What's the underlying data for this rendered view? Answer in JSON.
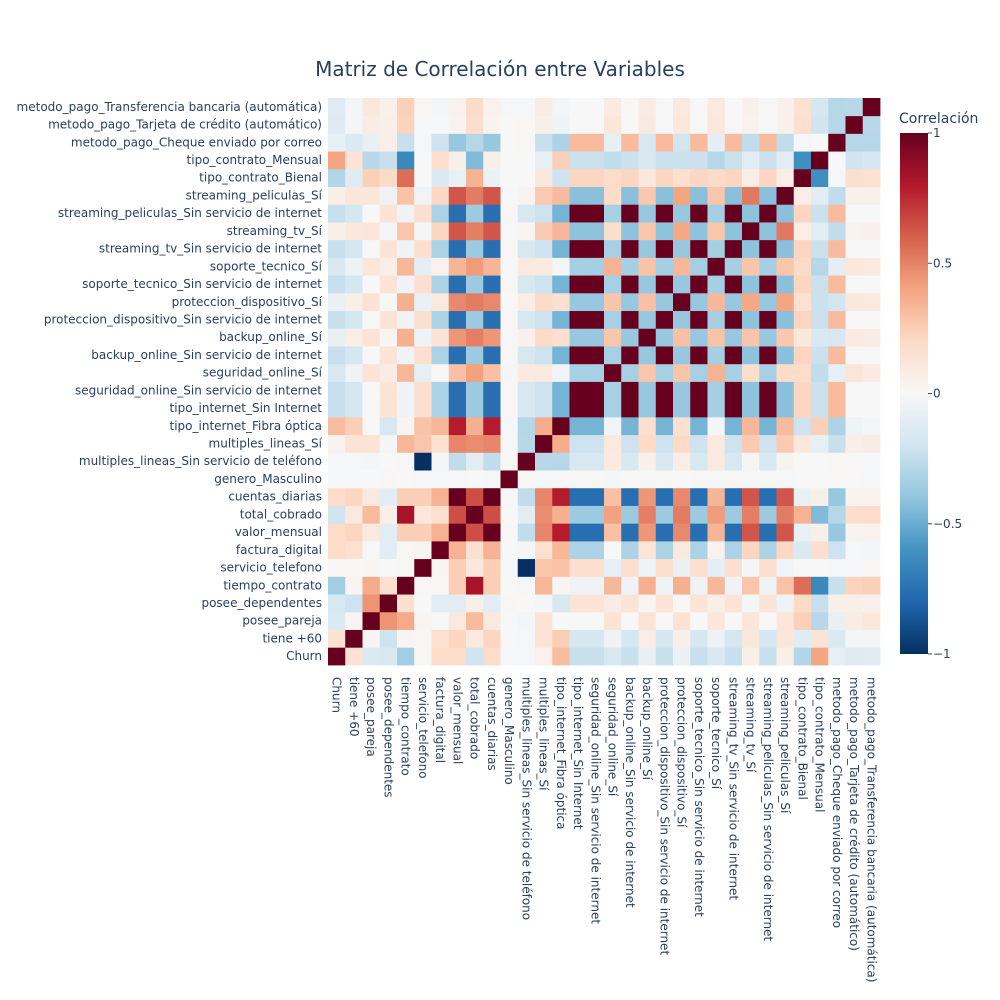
{
  "chart_data": {
    "type": "heatmap",
    "title": "Matriz de Correlación entre Variables",
    "colorbar_title": "Correlación",
    "colorbar_ticks": [
      1,
      0.5,
      0,
      -0.5,
      -1
    ],
    "colorbar_tick_labels": [
      "1",
      "0.5",
      "0",
      "−0.5",
      "−1"
    ],
    "zlim": [
      -1,
      1
    ],
    "colorscale": [
      "#053061",
      "#2166ac",
      "#4393c3",
      "#92c5de",
      "#d1e5f0",
      "#f7f7f7",
      "#fddbc7",
      "#f4a582",
      "#d6604d",
      "#b2182b",
      "#67001f"
    ],
    "variables": [
      "Churn",
      "tiene +60",
      "posee_pareja",
      "posee_dependentes",
      "tiempo_contrato",
      "servicio_telefono",
      "factura_digital",
      "valor_mensual",
      "total_cobrado",
      "cuentas_diarias",
      "genero_Masculino",
      "multiples_lineas_Sin servicio de teléfono",
      "multiples_lineas_Sí",
      "tipo_internet_Fibra óptica",
      "tipo_internet_Sin Internet",
      "seguridad_online_Sin servicio de internet",
      "seguridad_online_Sí",
      "backup_online_Sin servicio de internet",
      "backup_online_Sí",
      "proteccion_dispositivo_Sin servicio de internet",
      "proteccion_dispositivo_Sí",
      "soporte_tecnico_Sin servicio de internet",
      "soporte_tecnico_Sí",
      "streaming_tv_Sin servicio de internet",
      "streaming_tv_Sí",
      "streaming_peliculas_Sin servicio de internet",
      "streaming_peliculas_Sí",
      "tipo_contrato_Bienal",
      "tipo_contrato_Mensual",
      "metodo_pago_Cheque enviado por correo",
      "metodo_pago_Tarjeta de crédito (automático)",
      "metodo_pago_Transferencia bancaria (automática)"
    ],
    "z": [
      [
        1,
        0.15,
        -0.15,
        -0.16,
        -0.35,
        0.01,
        0.19,
        0.19,
        -0.2,
        0.19,
        -0.01,
        -0.01,
        0.04,
        0.31,
        -0.23,
        -0.23,
        -0.17,
        -0.23,
        -0.08,
        -0.23,
        -0.07,
        -0.23,
        -0.16,
        -0.23,
        0.06,
        -0.23,
        0.06,
        -0.3,
        0.4,
        -0.09,
        -0.13,
        -0.12
      ],
      [
        0.15,
        1,
        0.02,
        -0.21,
        0.02,
        0.01,
        0.16,
        0.22,
        0.1,
        0.22,
        0,
        -0.01,
        0.14,
        0.25,
        -0.18,
        -0.18,
        -0.04,
        -0.18,
        0.07,
        -0.18,
        0.06,
        -0.18,
        -0.06,
        -0.18,
        0.11,
        -0.18,
        0.12,
        -0.12,
        0.14,
        -0.15,
        -0.02,
        -0.02
      ],
      [
        -0.15,
        0.02,
        1,
        0.45,
        0.38,
        0.02,
        -0.01,
        0.1,
        0.32,
        0.1,
        0,
        -0.02,
        0.14,
        0,
        0,
        0,
        0.14,
        0,
        0.14,
        0,
        0.15,
        0,
        0.12,
        0,
        0.12,
        0,
        0.12,
        0.24,
        -0.28,
        -0.08,
        0.08,
        0.11
      ],
      [
        -0.16,
        -0.21,
        0.45,
        1,
        0.16,
        0,
        -0.11,
        -0.11,
        0.06,
        -0.11,
        0.01,
        0,
        -0.02,
        -0.17,
        0.14,
        0.14,
        0.08,
        0.14,
        0.02,
        0.14,
        0.01,
        0.14,
        0.06,
        0.14,
        -0.02,
        0.14,
        -0.04,
        0.2,
        -0.23,
        0.06,
        0.06,
        0.05
      ],
      [
        -0.35,
        0.02,
        0.38,
        0.16,
        1,
        0.01,
        0.01,
        0.25,
        0.83,
        0.25,
        0,
        -0.01,
        0.33,
        0.02,
        -0.04,
        -0.04,
        0.33,
        -0.04,
        0.36,
        -0.04,
        0.36,
        -0.04,
        0.33,
        -0.04,
        0.28,
        -0.04,
        0.29,
        0.56,
        -0.65,
        -0.23,
        0.23,
        0.24
      ],
      [
        0.01,
        0.01,
        0.02,
        0,
        0.01,
        1,
        0.02,
        0.25,
        0.11,
        0.25,
        -0.01,
        -1,
        0.28,
        0.29,
        0.17,
        0.17,
        -0.09,
        0.17,
        -0.05,
        0.17,
        -0.07,
        0.17,
        -0.1,
        0.17,
        -0.02,
        0.17,
        -0.03,
        0,
        0,
        -0.01,
        -0.01,
        0.01
      ],
      [
        0.19,
        0.16,
        -0.01,
        -0.11,
        0.01,
        0.02,
        1,
        0.35,
        0.16,
        0.35,
        -0.01,
        -0.02,
        0.16,
        0.33,
        -0.32,
        -0.32,
        0,
        -0.32,
        0.13,
        -0.32,
        0.1,
        -0.32,
        0.04,
        -0.32,
        0.22,
        -0.32,
        0.21,
        -0.15,
        0.17,
        -0.21,
        -0.01,
        -0.02
      ],
      [
        0.19,
        0.22,
        0.1,
        -0.11,
        0.25,
        0.25,
        0.35,
        1,
        0.65,
        1,
        -0.01,
        -0.25,
        0.49,
        0.79,
        -0.76,
        -0.76,
        0.3,
        -0.76,
        0.44,
        -0.76,
        0.48,
        -0.76,
        0.34,
        -0.76,
        0.63,
        -0.76,
        0.63,
        -0.07,
        0.06,
        -0.38,
        0.03,
        0.04
      ],
      [
        -0.2,
        0.1,
        0.32,
        0.06,
        0.83,
        0.11,
        0.16,
        0.65,
        1,
        0.65,
        0,
        -0.11,
        0.47,
        0.36,
        -0.37,
        -0.37,
        0.41,
        -0.37,
        0.51,
        -0.37,
        0.52,
        -0.37,
        0.43,
        -0.37,
        0.51,
        -0.37,
        0.52,
        0.35,
        -0.44,
        -0.29,
        0.18,
        0.19
      ],
      [
        0.19,
        0.22,
        0.1,
        -0.11,
        0.25,
        0.25,
        0.35,
        1,
        0.65,
        1,
        -0.01,
        -0.25,
        0.49,
        0.79,
        -0.76,
        -0.76,
        0.3,
        -0.76,
        0.44,
        -0.76,
        0.48,
        -0.76,
        0.34,
        -0.76,
        0.63,
        -0.76,
        0.63,
        -0.07,
        0.06,
        -0.38,
        0.03,
        0.04
      ],
      [
        -0.01,
        0,
        0,
        0.01,
        0,
        -0.01,
        -0.01,
        -0.01,
        0,
        -0.01,
        1,
        0.01,
        -0.01,
        -0.01,
        0.01,
        0.01,
        -0.02,
        0.01,
        -0.01,
        0.01,
        0,
        0.01,
        -0.01,
        0.01,
        -0.01,
        0.01,
        -0.01,
        0,
        0,
        0,
        0,
        -0.01
      ],
      [
        -0.01,
        -0.01,
        -0.02,
        0,
        -0.01,
        -1,
        -0.02,
        -0.25,
        -0.11,
        -0.25,
        0.01,
        1,
        -0.28,
        -0.29,
        -0.17,
        -0.17,
        0.09,
        -0.17,
        0.05,
        -0.17,
        0.07,
        -0.17,
        0.1,
        -0.17,
        0.02,
        -0.17,
        0.03,
        0,
        0,
        0.01,
        0.01,
        -0.01
      ],
      [
        0.04,
        0.14,
        0.14,
        -0.02,
        0.33,
        0.28,
        0.16,
        0.49,
        0.47,
        0.49,
        -0.01,
        -0.28,
        1,
        0.37,
        -0.21,
        -0.21,
        0.1,
        -0.21,
        0.2,
        -0.21,
        0.2,
        -0.21,
        0.1,
        -0.21,
        0.26,
        -0.21,
        0.26,
        0.11,
        -0.09,
        -0.23,
        0.06,
        0.08
      ],
      [
        0.31,
        0.25,
        0,
        -0.17,
        0.02,
        0.29,
        0.33,
        0.79,
        0.36,
        0.79,
        -0.01,
        -0.29,
        0.37,
        1,
        -0.47,
        -0.47,
        -0.03,
        -0.47,
        0.17,
        -0.47,
        0.16,
        -0.47,
        -0.02,
        -0.47,
        0.33,
        -0.47,
        0.32,
        -0.21,
        0.24,
        -0.31,
        -0.05,
        -0.02
      ],
      [
        -0.23,
        -0.18,
        0,
        0.14,
        -0.04,
        0.17,
        -0.32,
        -0.76,
        -0.37,
        -0.76,
        0.01,
        -0.17,
        -0.21,
        -0.47,
        1,
        1,
        -0.33,
        1,
        -0.38,
        1,
        -0.38,
        1,
        -0.34,
        1,
        -0.41,
        1,
        -0.42,
        0.22,
        -0.22,
        0.32,
        0,
        0
      ],
      [
        -0.23,
        -0.18,
        0,
        0.14,
        -0.04,
        0.17,
        -0.32,
        -0.76,
        -0.37,
        -0.76,
        0.01,
        -0.17,
        -0.21,
        -0.47,
        1,
        1,
        -0.33,
        1,
        -0.38,
        1,
        -0.38,
        1,
        -0.34,
        1,
        -0.41,
        1,
        -0.42,
        0.22,
        -0.22,
        0.32,
        0,
        0
      ],
      [
        -0.17,
        -0.04,
        0.14,
        0.08,
        0.33,
        -0.09,
        0,
        0.3,
        0.41,
        0.3,
        -0.02,
        0.09,
        0.1,
        -0.03,
        -0.33,
        -0.33,
        1,
        -0.33,
        0.28,
        -0.33,
        0.28,
        -0.33,
        0.35,
        -0.33,
        0.18,
        -0.33,
        0.19,
        0.19,
        -0.25,
        -0.09,
        0.12,
        0.09
      ],
      [
        -0.23,
        -0.18,
        0,
        0.14,
        -0.04,
        0.17,
        -0.32,
        -0.76,
        -0.37,
        -0.76,
        0.01,
        -0.17,
        -0.21,
        -0.47,
        1,
        1,
        -0.33,
        1,
        -0.38,
        1,
        -0.38,
        1,
        -0.34,
        1,
        -0.41,
        1,
        -0.42,
        0.22,
        -0.22,
        0.32,
        0,
        0
      ],
      [
        -0.08,
        0.07,
        0.14,
        0.02,
        0.36,
        -0.05,
        0.13,
        0.44,
        0.51,
        0.44,
        -0.01,
        0.05,
        0.2,
        0.17,
        -0.38,
        -0.38,
        0.28,
        -0.38,
        1,
        -0.38,
        0.3,
        -0.38,
        0.29,
        -0.38,
        0.28,
        -0.38,
        0.27,
        0.11,
        -0.16,
        -0.17,
        0.09,
        0.08
      ],
      [
        -0.23,
        -0.18,
        0,
        0.14,
        -0.04,
        0.17,
        -0.32,
        -0.76,
        -0.37,
        -0.76,
        0.01,
        -0.17,
        -0.21,
        -0.47,
        1,
        1,
        -0.33,
        1,
        -0.38,
        1,
        -0.38,
        1,
        -0.34,
        1,
        -0.41,
        1,
        -0.42,
        0.22,
        -0.22,
        0.32,
        0,
        0
      ],
      [
        -0.07,
        0.06,
        0.15,
        0.01,
        0.36,
        -0.07,
        0.1,
        0.48,
        0.52,
        0.48,
        0,
        0.07,
        0.2,
        0.16,
        -0.38,
        -0.38,
        0.28,
        -0.38,
        0.3,
        -0.38,
        1,
        -0.38,
        0.33,
        -0.38,
        0.39,
        -0.38,
        0.4,
        0.16,
        -0.22,
        -0.19,
        0.11,
        0.1
      ],
      [
        -0.23,
        -0.18,
        0,
        0.14,
        -0.04,
        0.17,
        -0.32,
        -0.76,
        -0.37,
        -0.76,
        0.01,
        -0.17,
        -0.21,
        -0.47,
        1,
        1,
        -0.33,
        1,
        -0.38,
        1,
        -0.38,
        1,
        -0.34,
        1,
        -0.41,
        1,
        -0.42,
        0.22,
        -0.22,
        0.32,
        0,
        0
      ],
      [
        -0.16,
        -0.06,
        0.12,
        0.06,
        0.33,
        -0.1,
        0.04,
        0.34,
        0.43,
        0.34,
        -0.01,
        0.1,
        0.1,
        -0.02,
        -0.34,
        -0.34,
        0.35,
        -0.34,
        0.29,
        -0.34,
        0.33,
        -0.34,
        1,
        -0.34,
        0.28,
        -0.34,
        0.28,
        0.2,
        -0.29,
        -0.1,
        0.11,
        0.1
      ],
      [
        -0.23,
        -0.18,
        0,
        0.14,
        -0.04,
        0.17,
        -0.32,
        -0.76,
        -0.37,
        -0.76,
        0.01,
        -0.17,
        -0.21,
        -0.47,
        1,
        1,
        -0.33,
        1,
        -0.38,
        1,
        -0.38,
        1,
        -0.34,
        1,
        -0.41,
        1,
        -0.42,
        0.22,
        -0.22,
        0.32,
        0,
        0
      ],
      [
        0.06,
        0.11,
        0.12,
        -0.02,
        0.28,
        -0.02,
        0.22,
        0.63,
        0.51,
        0.63,
        -0.01,
        0.02,
        0.26,
        0.33,
        -0.41,
        -0.41,
        0.18,
        -0.41,
        0.28,
        -0.41,
        0.39,
        -0.41,
        0.28,
        -0.41,
        1,
        -0.41,
        0.53,
        0.07,
        -0.11,
        -0.25,
        0.04,
        0.05
      ],
      [
        -0.23,
        -0.18,
        0,
        0.14,
        -0.04,
        0.17,
        -0.32,
        -0.76,
        -0.37,
        -0.76,
        0.01,
        -0.17,
        -0.21,
        -0.47,
        1,
        1,
        -0.33,
        1,
        -0.38,
        1,
        -0.38,
        1,
        -0.34,
        1,
        -0.41,
        1,
        -0.42,
        0.22,
        -0.22,
        0.32,
        0,
        0
      ],
      [
        0.06,
        0.12,
        0.12,
        -0.04,
        0.29,
        -0.03,
        0.21,
        0.63,
        0.52,
        0.63,
        -0.01,
        0.03,
        0.26,
        0.32,
        -0.42,
        -0.42,
        0.19,
        -0.42,
        0.27,
        -0.42,
        0.4,
        -0.42,
        0.28,
        -0.42,
        0.53,
        -0.42,
        1,
        0.07,
        -0.11,
        -0.25,
        0.05,
        0.05
      ],
      [
        -0.3,
        -0.12,
        0.24,
        0.2,
        0.56,
        0,
        -0.15,
        -0.07,
        0.35,
        -0.07,
        0,
        0,
        0.11,
        -0.21,
        0.22,
        0.22,
        0.19,
        0.22,
        0.11,
        0.22,
        0.16,
        0.22,
        0.2,
        0.22,
        0.07,
        0.22,
        0.07,
        1,
        -0.62,
        -0.01,
        0.17,
        0.16
      ],
      [
        0.4,
        0.14,
        -0.28,
        -0.23,
        -0.65,
        0,
        0.17,
        0.06,
        -0.44,
        0.06,
        0,
        0,
        -0.09,
        0.24,
        -0.22,
        -0.22,
        -0.25,
        -0.22,
        -0.16,
        -0.22,
        -0.22,
        -0.22,
        -0.29,
        -0.22,
        -0.11,
        -0.22,
        -0.11,
        -0.62,
        1,
        0,
        -0.2,
        -0.18
      ],
      [
        -0.09,
        -0.15,
        -0.08,
        0.06,
        -0.23,
        -0.01,
        -0.21,
        -0.38,
        -0.29,
        -0.38,
        0,
        0.01,
        -0.23,
        -0.31,
        0.32,
        0.32,
        -0.09,
        0.32,
        -0.17,
        0.32,
        -0.19,
        0.32,
        -0.1,
        0.32,
        -0.25,
        0.32,
        -0.25,
        -0.01,
        0,
        1,
        -0.29,
        -0.29
      ],
      [
        -0.13,
        -0.02,
        0.08,
        0.06,
        0.23,
        -0.01,
        -0.01,
        0.03,
        0.18,
        0.03,
        0,
        0.01,
        0.06,
        -0.05,
        0,
        0,
        0.12,
        0,
        0.09,
        0,
        0.11,
        0,
        0.11,
        0,
        0.04,
        0,
        0.05,
        0.17,
        -0.2,
        -0.29,
        1,
        -0.28
      ],
      [
        -0.12,
        -0.02,
        0.11,
        0.05,
        0.24,
        0.01,
        -0.02,
        0.04,
        0.19,
        0.04,
        -0.01,
        -0.01,
        0.08,
        -0.02,
        0,
        0,
        0.09,
        0,
        0.08,
        0,
        0.1,
        0,
        0.1,
        0,
        0.05,
        0,
        0.05,
        0.16,
        -0.18,
        -0.29,
        -0.28,
        1
      ]
    ]
  }
}
